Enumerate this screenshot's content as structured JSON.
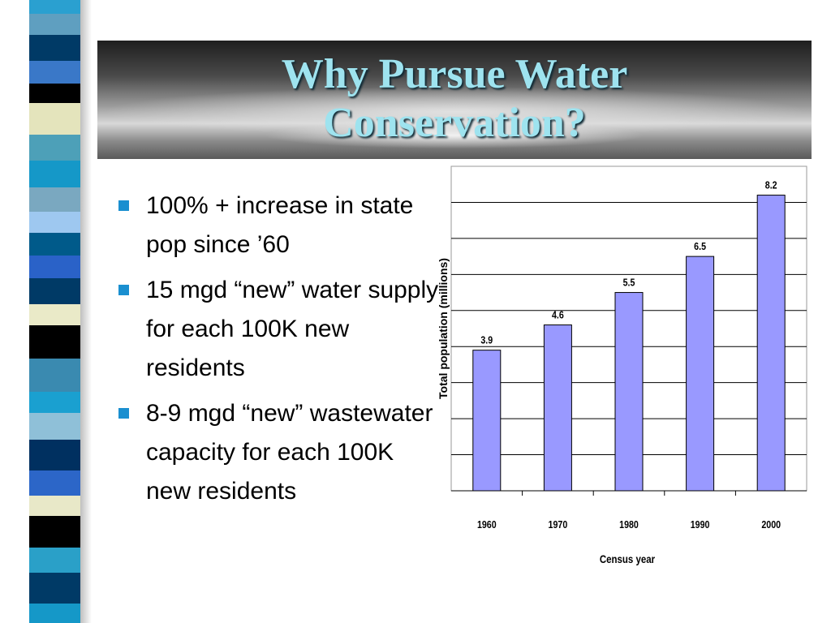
{
  "title": {
    "line1": "Why Pursue Water",
    "line2": "Conservation?"
  },
  "colors": {
    "title_text": "#9ee3ef",
    "bullet_marker": "#1a8fd0",
    "bar_fill": "#9999ff",
    "stripes": [
      "#2aa0d0",
      "#5f9fc0",
      "#003a66",
      "#3a78c8",
      "#000000",
      "#e4e4bc",
      "#4da0b8",
      "#1598c8",
      "#7aa8c0",
      "#9ec8f0",
      "#005a8a",
      "#2a62c8",
      "#003a66",
      "#eaeac8",
      "#000000",
      "#3a8ab0",
      "#1aa0d0",
      "#8fc0d8",
      "#003060",
      "#2c66c8",
      "#e8e8c8",
      "#000000",
      "#2aa0c8",
      "#003a66",
      "#1598c8"
    ]
  },
  "bullets": [
    {
      "text": "100% + increase in state pop since ’60"
    },
    {
      "text": "15 mgd “new” water supply for each 100K new residents"
    },
    {
      "text": "8-9 mgd “new” wastewater capacity for each 100K new residents"
    }
  ],
  "chart_data": {
    "type": "bar",
    "categories": [
      "1960",
      "1970",
      "1980",
      "1990",
      "2000"
    ],
    "values": [
      3.9,
      4.6,
      5.5,
      6.5,
      8.2
    ],
    "data_labels": [
      "3.9",
      "4.6",
      "5.5",
      "6.5",
      "8.2"
    ],
    "xlabel": "Census year",
    "ylabel": "Total population (millions)",
    "ylim": [
      0,
      9
    ],
    "grid": true,
    "y_ticks_labeled": false
  }
}
